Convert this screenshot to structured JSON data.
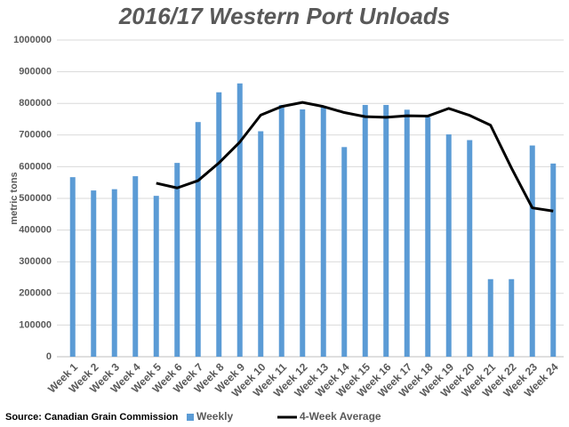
{
  "chart_data": {
    "type": "bar",
    "title": "2016/17 Western Port Unloads",
    "y_label": "metric tons",
    "source": "Source: Canadian Grain Commission",
    "categories": [
      "Week 1",
      "Week 2",
      "Week 3",
      "Week 4",
      "Week 5",
      "Week 6",
      "Week 7",
      "Week 8",
      "Week 9",
      "Week 10",
      "Week 11",
      "Week 12",
      "Week 13",
      "Week 14",
      "Week 15",
      "Week 16",
      "Week 17",
      "Week 18",
      "Week 19",
      "Week 20",
      "Week 21",
      "Week 22",
      "Week 23",
      "Week 24"
    ],
    "series": [
      {
        "name": "Weekly",
        "type": "bar",
        "color": "#5b9bd5",
        "values": [
          567000,
          525000,
          529000,
          570000,
          508000,
          612000,
          741000,
          835000,
          863000,
          712000,
          795000,
          781000,
          790000,
          662000,
          795000,
          795000,
          780000,
          757000,
          702000,
          684000,
          245000,
          245000,
          667000,
          610000
        ]
      },
      {
        "name": "4-Week Average",
        "type": "line",
        "color": "#000000",
        "values": [
          null,
          null,
          null,
          null,
          548000,
          533000,
          556000,
          612000,
          678000,
          763000,
          790000,
          803000,
          790000,
          771000,
          758000,
          756000,
          761000,
          760000,
          784000,
          762000,
          731000,
          596000,
          470000,
          460000
        ]
      }
    ],
    "ylim": [
      0,
      1000000
    ],
    "yticks": [
      0,
      100000,
      200000,
      300000,
      400000,
      500000,
      600000,
      700000,
      800000,
      900000,
      1000000
    ],
    "grid": true
  }
}
